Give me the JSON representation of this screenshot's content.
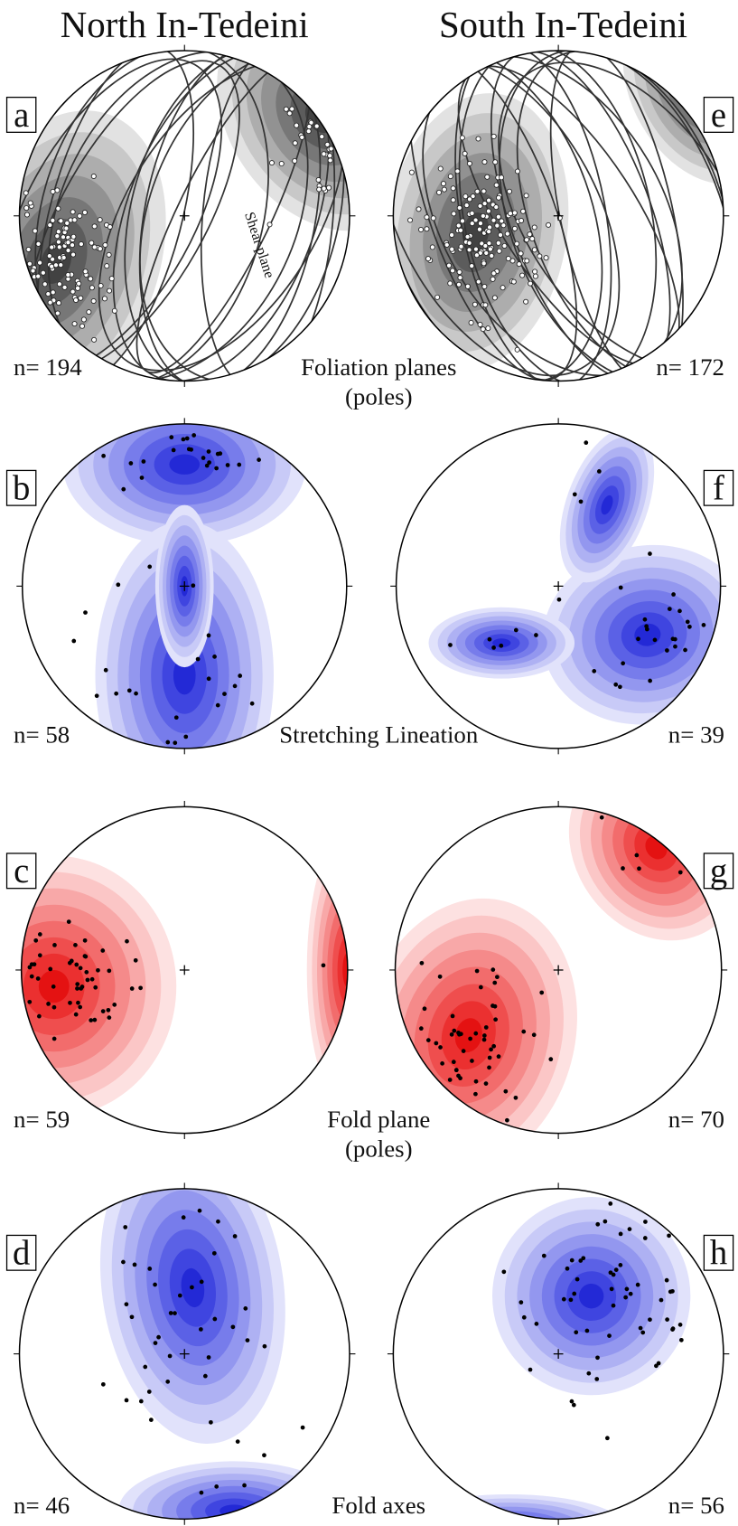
{
  "headers": {
    "left": "North In-Tedeini",
    "right": "South In-Tedeini"
  },
  "rows": [
    {
      "caption": [
        "Foliation planes",
        "(poles)"
      ],
      "left": {
        "label": "a",
        "n": "n= 194"
      },
      "right": {
        "label": "e",
        "n": "n= 172"
      }
    },
    {
      "caption": [
        "Stretching Lineation"
      ],
      "left": {
        "label": "b",
        "n": "n= 58"
      },
      "right": {
        "label": "f",
        "n": "n= 39"
      }
    },
    {
      "caption": [
        "Fold plane",
        "(poles)"
      ],
      "left": {
        "label": "c",
        "n": "n= 59"
      },
      "right": {
        "label": "g",
        "n": "n= 70"
      }
    },
    {
      "caption": [
        "Fold axes"
      ],
      "left": {
        "label": "d",
        "n": "n= 46"
      },
      "right": {
        "label": "h",
        "n": "n= 56"
      }
    }
  ],
  "annotations": {
    "shear_plane": "Shear plane"
  }
}
